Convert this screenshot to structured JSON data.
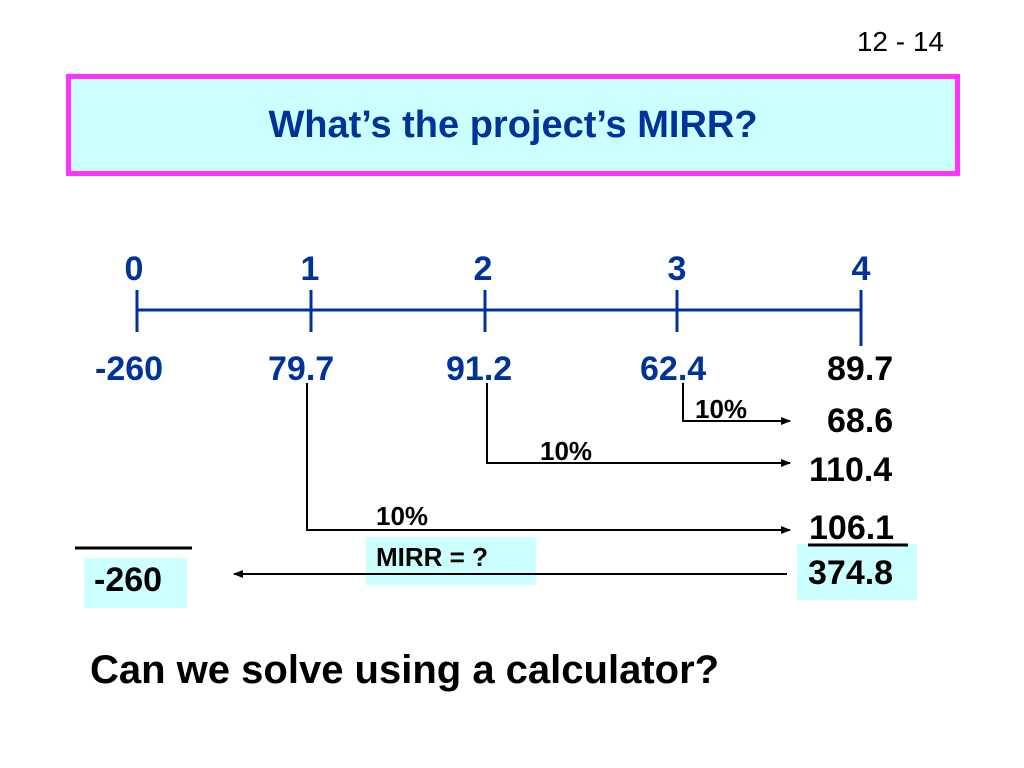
{
  "slide": {
    "number": "12 - 14",
    "title": "What’s the project’s MIRR?",
    "question": "Can we solve using a calculator?"
  },
  "timeline": {
    "periods": [
      "0",
      "1",
      "2",
      "3",
      "4"
    ],
    "cash_flows": [
      "-260",
      "79.7",
      "91.2",
      "62.4",
      "89.7"
    ]
  },
  "compounding": {
    "rate_labels": [
      "10%",
      "10%",
      "10%"
    ],
    "future_values": [
      "68.6",
      "110.4",
      "106.1"
    ],
    "terminal_value": "374.8",
    "pv_of_costs": "-260",
    "mirr_label": "MIRR = ?"
  },
  "colors": {
    "title_text": "#003399",
    "title_border": "#ff33ff",
    "highlight_fill": "#ccffff",
    "timeline": "#003399"
  }
}
